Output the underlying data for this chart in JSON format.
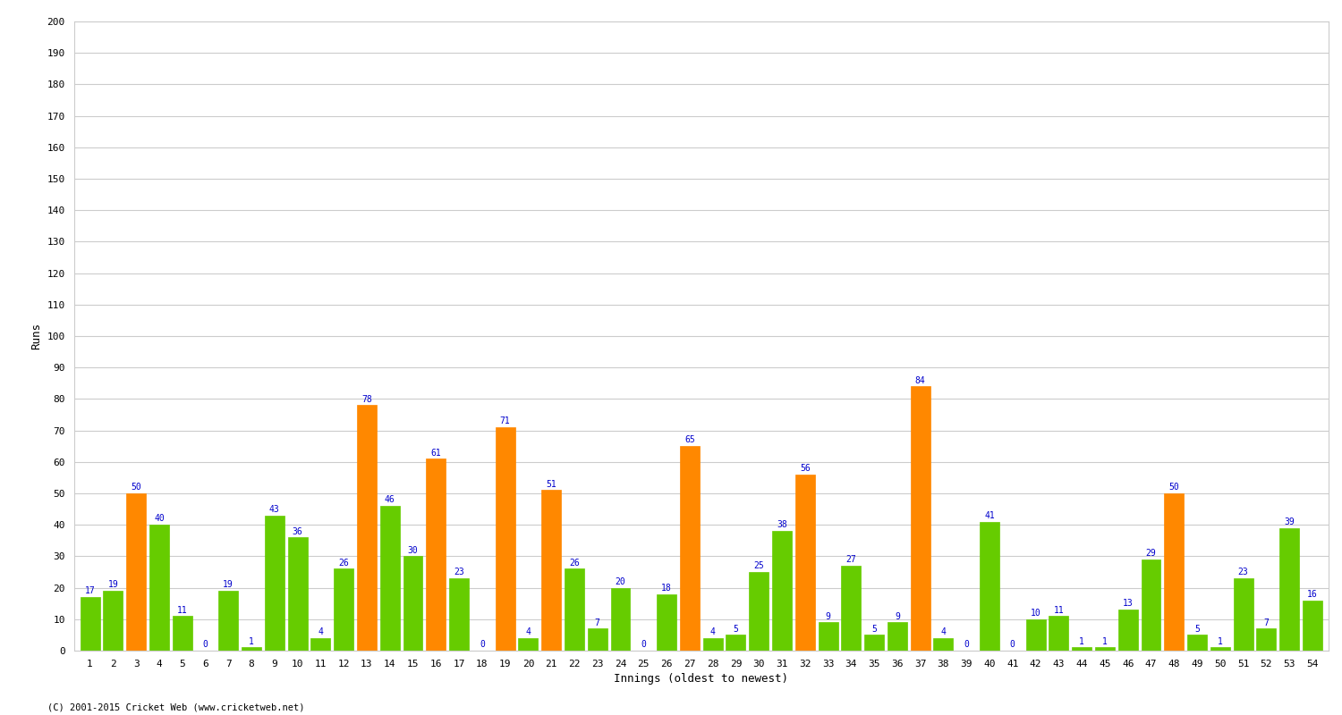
{
  "innings": [
    1,
    2,
    3,
    4,
    5,
    6,
    7,
    8,
    9,
    10,
    11,
    12,
    13,
    14,
    15,
    16,
    17,
    18,
    19,
    20,
    21,
    22,
    23,
    24,
    25,
    26,
    27,
    28,
    29,
    30,
    31,
    32,
    33,
    34,
    35,
    36,
    37,
    38,
    39,
    40,
    41,
    42,
    43,
    44,
    45,
    46,
    47,
    48,
    49,
    50,
    51,
    52,
    53,
    54
  ],
  "values": [
    17,
    19,
    50,
    40,
    11,
    0,
    19,
    1,
    43,
    36,
    4,
    26,
    78,
    46,
    30,
    61,
    23,
    0,
    71,
    4,
    51,
    26,
    7,
    20,
    0,
    18,
    65,
    4,
    5,
    25,
    38,
    56,
    9,
    27,
    5,
    9,
    84,
    4,
    0,
    41,
    0,
    10,
    11,
    1,
    1,
    13,
    29,
    50,
    5,
    1,
    23,
    7,
    39,
    16
  ],
  "colors": [
    "#66cc00",
    "#66cc00",
    "#ff8800",
    "#66cc00",
    "#66cc00",
    "#66cc00",
    "#66cc00",
    "#66cc00",
    "#66cc00",
    "#66cc00",
    "#66cc00",
    "#66cc00",
    "#ff8800",
    "#66cc00",
    "#66cc00",
    "#ff8800",
    "#66cc00",
    "#66cc00",
    "#ff8800",
    "#66cc00",
    "#ff8800",
    "#66cc00",
    "#66cc00",
    "#66cc00",
    "#66cc00",
    "#66cc00",
    "#ff8800",
    "#66cc00",
    "#66cc00",
    "#66cc00",
    "#66cc00",
    "#ff8800",
    "#66cc00",
    "#66cc00",
    "#66cc00",
    "#66cc00",
    "#ff8800",
    "#66cc00",
    "#66cc00",
    "#66cc00",
    "#66cc00",
    "#66cc00",
    "#66cc00",
    "#66cc00",
    "#66cc00",
    "#66cc00",
    "#66cc00",
    "#ff8800",
    "#66cc00",
    "#66cc00",
    "#66cc00",
    "#66cc00",
    "#66cc00",
    "#66cc00"
  ],
  "xlabel": "Innings (oldest to newest)",
  "ylabel": "Runs",
  "ylim": [
    0,
    200
  ],
  "yticks": [
    0,
    10,
    20,
    30,
    40,
    50,
    60,
    70,
    80,
    90,
    100,
    110,
    120,
    130,
    140,
    150,
    160,
    170,
    180,
    190,
    200
  ],
  "bg_color": "#ffffff",
  "grid_color": "#cccccc",
  "label_color": "#0000cc",
  "label_fontsize": 7,
  "tick_fontsize": 8,
  "axis_label_fontsize": 9,
  "footer": "(C) 2001-2015 Cricket Web (www.cricketweb.net)"
}
